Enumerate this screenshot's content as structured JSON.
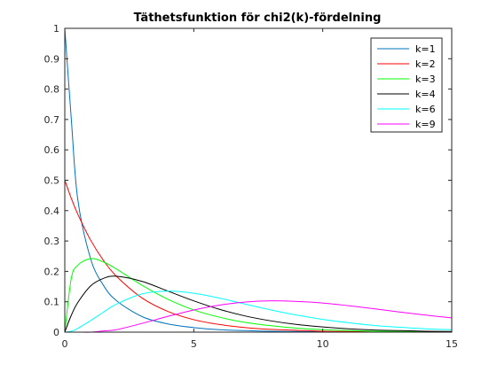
{
  "chart_data": {
    "type": "line",
    "title": "Täthetsfunktion för chi2(k)-fördelning",
    "xlabel": "",
    "ylabel": "",
    "xlim": [
      0,
      15
    ],
    "ylim": [
      0,
      1
    ],
    "x_ticks": [
      0,
      5,
      10,
      15
    ],
    "y_ticks": [
      0,
      0.1,
      0.2,
      0.3,
      0.4,
      0.5,
      0.6,
      0.7,
      0.8,
      0.9,
      1
    ],
    "grid": false,
    "legend_position": "top-right",
    "x": [
      0,
      0.25,
      0.5,
      1,
      1.5,
      2,
      3,
      4,
      5,
      6,
      7,
      8,
      9,
      10,
      11,
      12,
      13,
      14,
      15
    ],
    "series": [
      {
        "name": "k=1",
        "color": "#0072bd",
        "values": [
          1.0,
          0.704,
          0.439,
          0.242,
          0.154,
          0.104,
          0.051,
          0.027,
          0.015,
          0.008,
          0.005,
          0.003,
          0.002,
          0.001,
          0.001,
          0.0,
          0.0,
          0.0,
          0.0
        ]
      },
      {
        "name": "k=2",
        "color": "#ff0000",
        "values": [
          0.5,
          0.441,
          0.389,
          0.303,
          0.236,
          0.184,
          0.112,
          0.068,
          0.041,
          0.025,
          0.015,
          0.009,
          0.006,
          0.003,
          0.002,
          0.001,
          0.001,
          0.0,
          0.0
        ]
      },
      {
        "name": "k=3",
        "color": "#00ff00",
        "values": [
          0.0,
          0.176,
          0.22,
          0.242,
          0.231,
          0.208,
          0.154,
          0.108,
          0.073,
          0.049,
          0.032,
          0.021,
          0.013,
          0.008,
          0.005,
          0.003,
          0.002,
          0.001,
          0.001
        ]
      },
      {
        "name": "k=4",
        "color": "#000000",
        "values": [
          0.0,
          0.055,
          0.097,
          0.152,
          0.177,
          0.184,
          0.167,
          0.135,
          0.103,
          0.075,
          0.053,
          0.037,
          0.025,
          0.017,
          0.011,
          0.007,
          0.005,
          0.003,
          0.002
        ]
      },
      {
        "name": "k=6",
        "color": "#00ffff",
        "values": [
          0.0,
          0.003,
          0.012,
          0.038,
          0.066,
          0.092,
          0.126,
          0.135,
          0.128,
          0.112,
          0.092,
          0.073,
          0.056,
          0.042,
          0.031,
          0.022,
          0.016,
          0.011,
          0.008
        ]
      },
      {
        "name": "k=9",
        "color": "#ff00ff",
        "values": [
          0.0,
          0.0,
          0.0,
          0.0,
          0.004,
          0.008,
          0.029,
          0.052,
          0.073,
          0.089,
          0.099,
          0.103,
          0.101,
          0.096,
          0.087,
          0.077,
          0.066,
          0.056,
          0.047
        ]
      }
    ]
  }
}
